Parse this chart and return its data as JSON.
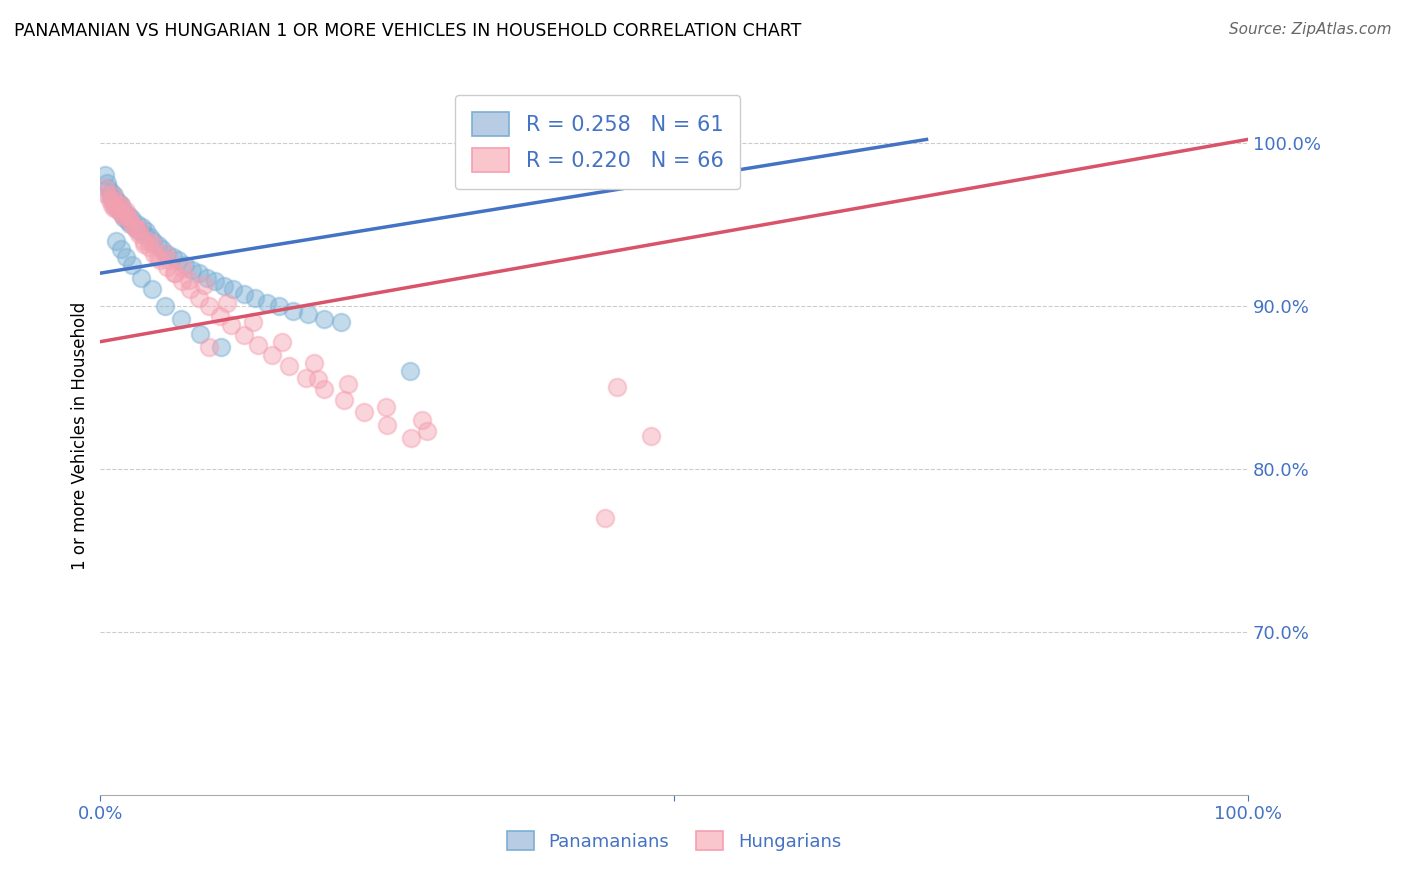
{
  "title": "PANAMANIAN VS HUNGARIAN 1 OR MORE VEHICLES IN HOUSEHOLD CORRELATION CHART",
  "source": "Source: ZipAtlas.com",
  "ylabel": "1 or more Vehicles in Household",
  "xlim": [
    0.0,
    1.0
  ],
  "ylim": [
    0.6,
    1.04
  ],
  "yticks": [
    0.7,
    0.8,
    0.9,
    1.0
  ],
  "ytick_labels": [
    "70.0%",
    "80.0%",
    "90.0%",
    "100.0%"
  ],
  "blue_R": 0.258,
  "blue_N": 61,
  "pink_R": 0.22,
  "pink_N": 66,
  "blue_color": "#7BAFD4",
  "pink_color": "#F4A0B0",
  "blue_trend": [
    0.0,
    0.92,
    0.72,
    1.002
  ],
  "pink_trend": [
    0.0,
    0.878,
    1.0,
    1.002
  ],
  "blue_x": [
    0.004,
    0.006,
    0.007,
    0.008,
    0.009,
    0.01,
    0.011,
    0.012,
    0.013,
    0.014,
    0.015,
    0.016,
    0.017,
    0.018,
    0.019,
    0.02,
    0.021,
    0.022,
    0.024,
    0.025,
    0.026,
    0.028,
    0.03,
    0.032,
    0.034,
    0.036,
    0.038,
    0.04,
    0.043,
    0.046,
    0.05,
    0.054,
    0.058,
    0.063,
    0.068,
    0.074,
    0.08,
    0.086,
    0.093,
    0.1,
    0.108,
    0.116,
    0.125,
    0.135,
    0.145,
    0.156,
    0.168,
    0.181,
    0.195,
    0.21,
    0.014,
    0.018,
    0.022,
    0.028,
    0.035,
    0.045,
    0.056,
    0.07,
    0.087,
    0.105,
    0.27
  ],
  "blue_y": [
    0.98,
    0.975,
    0.972,
    0.968,
    0.97,
    0.966,
    0.964,
    0.968,
    0.962,
    0.965,
    0.96,
    0.963,
    0.958,
    0.962,
    0.956,
    0.958,
    0.954,
    0.956,
    0.952,
    0.955,
    0.95,
    0.953,
    0.948,
    0.95,
    0.946,
    0.948,
    0.944,
    0.946,
    0.942,
    0.94,
    0.937,
    0.935,
    0.932,
    0.93,
    0.928,
    0.925,
    0.922,
    0.92,
    0.917,
    0.915,
    0.912,
    0.91,
    0.907,
    0.905,
    0.902,
    0.9,
    0.897,
    0.895,
    0.892,
    0.89,
    0.94,
    0.935,
    0.93,
    0.925,
    0.917,
    0.91,
    0.9,
    0.892,
    0.883,
    0.875,
    0.86
  ],
  "pink_x": [
    0.004,
    0.006,
    0.008,
    0.01,
    0.012,
    0.014,
    0.016,
    0.018,
    0.02,
    0.022,
    0.025,
    0.028,
    0.031,
    0.034,
    0.038,
    0.042,
    0.047,
    0.052,
    0.058,
    0.064,
    0.071,
    0.078,
    0.086,
    0.095,
    0.104,
    0.114,
    0.125,
    0.137,
    0.15,
    0.164,
    0.179,
    0.195,
    0.212,
    0.23,
    0.25,
    0.271,
    0.038,
    0.05,
    0.065,
    0.012,
    0.02,
    0.03,
    0.042,
    0.056,
    0.072,
    0.09,
    0.11,
    0.133,
    0.158,
    0.186,
    0.216,
    0.249,
    0.285,
    0.28,
    0.01,
    0.016,
    0.024,
    0.034,
    0.046,
    0.06,
    0.077,
    0.48,
    0.19,
    0.095,
    0.45,
    0.44
  ],
  "pink_y": [
    0.972,
    0.968,
    0.965,
    0.962,
    0.965,
    0.96,
    0.958,
    0.962,
    0.956,
    0.958,
    0.953,
    0.95,
    0.947,
    0.944,
    0.94,
    0.936,
    0.932,
    0.928,
    0.924,
    0.92,
    0.915,
    0.91,
    0.905,
    0.9,
    0.894,
    0.888,
    0.882,
    0.876,
    0.87,
    0.863,
    0.856,
    0.849,
    0.842,
    0.835,
    0.827,
    0.819,
    0.938,
    0.93,
    0.92,
    0.96,
    0.955,
    0.948,
    0.94,
    0.932,
    0.923,
    0.913,
    0.902,
    0.89,
    0.878,
    0.865,
    0.852,
    0.838,
    0.823,
    0.83,
    0.968,
    0.962,
    0.955,
    0.947,
    0.938,
    0.928,
    0.916,
    0.82,
    0.855,
    0.875,
    0.85,
    0.77
  ]
}
